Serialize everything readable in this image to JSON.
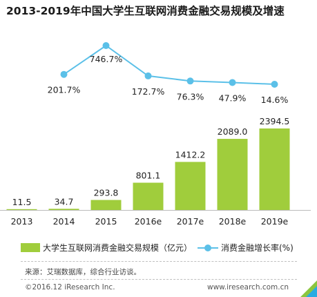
{
  "colors": {
    "bar": "#a0cd3c",
    "line": "#5bc0e8",
    "axis": "#bbbbbb",
    "corner_green": "#8cc63f",
    "corner_blue": "#29abe2"
  },
  "chart_data": {
    "type": "bar",
    "title": "2013-2019年中国大学生互联网消费金融交易规模及增速",
    "categories": [
      "2013",
      "2014",
      "2015",
      "2016e",
      "2017e",
      "2018e",
      "2019e"
    ],
    "series": [
      {
        "name": "大学生互联网消费金融交易规模（亿元）",
        "type": "bar",
        "values": [
          11.5,
          34.7,
          293.8,
          801.1,
          1412.2,
          2089.0,
          2394.5
        ],
        "labels": [
          "11.5",
          "34.7",
          "293.8",
          "801.1",
          "1412.2",
          "2089.0",
          "2394.5"
        ]
      },
      {
        "name": "消费金融增长率(%)",
        "type": "line",
        "values": [
          null,
          201.7,
          746.7,
          172.7,
          76.3,
          47.9,
          14.6
        ],
        "labels": [
          "",
          "201.7%",
          "746.7%",
          "172.7%",
          "76.3%",
          "47.9%",
          "14.6%"
        ]
      }
    ],
    "legend_position": "bottom",
    "grid": false
  },
  "footer": {
    "source": "来源：艾瑞数据库，综合行业访谈。",
    "copyright": "©2016.12 iResearch Inc.",
    "website": "www.iresearch.com.cn"
  }
}
